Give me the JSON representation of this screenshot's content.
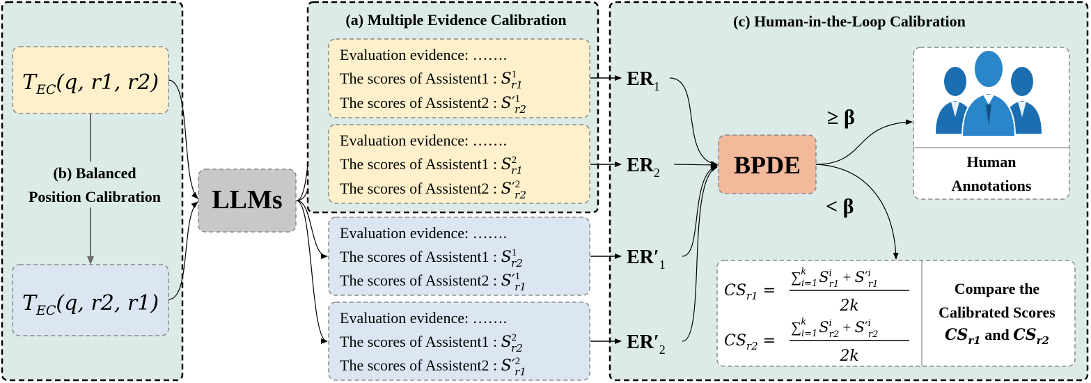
{
  "colors": {
    "panel_bg": "#dcebe7",
    "yellow_box": "#fdf0cb",
    "blue_box": "#dbe6f2",
    "llm_box": "#c9c7c8",
    "bpde_box": "#f3b99b",
    "human_icon": "#1f73b4"
  },
  "panel_b": {
    "label_line1": "(b) Balanced",
    "label_line2": "Position Calibration",
    "top_template": {
      "T": "T",
      "sub": "EC",
      "args": "(q, r1, r2)"
    },
    "bottom_template": {
      "T": "T",
      "sub": "EC",
      "args": "(q, r2, r1)"
    }
  },
  "llm": {
    "label": "LLMs"
  },
  "panel_a": {
    "title": "(a) Multiple Evidence Calibration"
  },
  "evidence_boxes": [
    {
      "evidence": "Evaluation evidence: …….",
      "line1": "The scores of Assistent1 :",
      "s1": {
        "base": "S",
        "prime": "",
        "sup": "1",
        "sub": "r1"
      },
      "line2": "The scores of Assistent2 :",
      "s2": {
        "base": "S",
        "prime": "′",
        "sup": "1",
        "sub": "r2"
      }
    },
    {
      "evidence": "Evaluation evidence: …….",
      "line1": "The scores of Assistent1 :",
      "s1": {
        "base": "S",
        "prime": "",
        "sup": "2",
        "sub": "r1"
      },
      "line2": "The scores of Assistent2 :",
      "s2": {
        "base": "S",
        "prime": "′",
        "sup": "2",
        "sub": "r2"
      }
    },
    {
      "evidence": "Evaluation evidence: …….",
      "line1": "The scores of Assistent1 :",
      "s1": {
        "base": "S",
        "prime": "",
        "sup": "1",
        "sub": "r2"
      },
      "line2": "The scores of Assistent2 :",
      "s2": {
        "base": "S",
        "prime": "′",
        "sup": "1",
        "sub": "r1"
      }
    },
    {
      "evidence": "Evaluation evidence: …….",
      "line1": "The scores of Assistent1 :",
      "s1": {
        "base": "S",
        "prime": "",
        "sup": "2",
        "sub": "r2"
      },
      "line2": "The scores of Assistent2 :",
      "s2": {
        "base": "S",
        "prime": "′",
        "sup": "2",
        "sub": "r1"
      }
    }
  ],
  "er_labels": [
    {
      "base": "ER",
      "sub": "1"
    },
    {
      "base": "ER",
      "sub": "2"
    },
    {
      "base": "ER′",
      "sub": "1"
    },
    {
      "base": "ER′",
      "sub": "2"
    }
  ],
  "panel_c": {
    "title": "(c) Human-in-the-Loop Calibration",
    "bpde": "BPDE",
    "ge_beta": "≥ β",
    "lt_beta": "< β",
    "human_line1": "Human",
    "human_line2": "Annotations",
    "formula1": {
      "lhs": "CS",
      "lhs_sub": "r1",
      "sum_sub": "i=1",
      "sum_sup": "k",
      "s_sub": "r1",
      "sp_sub": "r1",
      "den": "2k"
    },
    "formula2": {
      "lhs": "CS",
      "lhs_sub": "r2",
      "sum_sub": "i=1",
      "sum_sup": "k",
      "s_sub": "r2",
      "sp_sub": "r2",
      "den": "2k"
    },
    "compare_line1": "Compare the",
    "compare_line2": "Calibrated Scores",
    "compare_cs1": {
      "base": "CS",
      "sub": "r1"
    },
    "compare_and": "and",
    "compare_cs2": {
      "base": "CS",
      "sub": "r2"
    }
  }
}
